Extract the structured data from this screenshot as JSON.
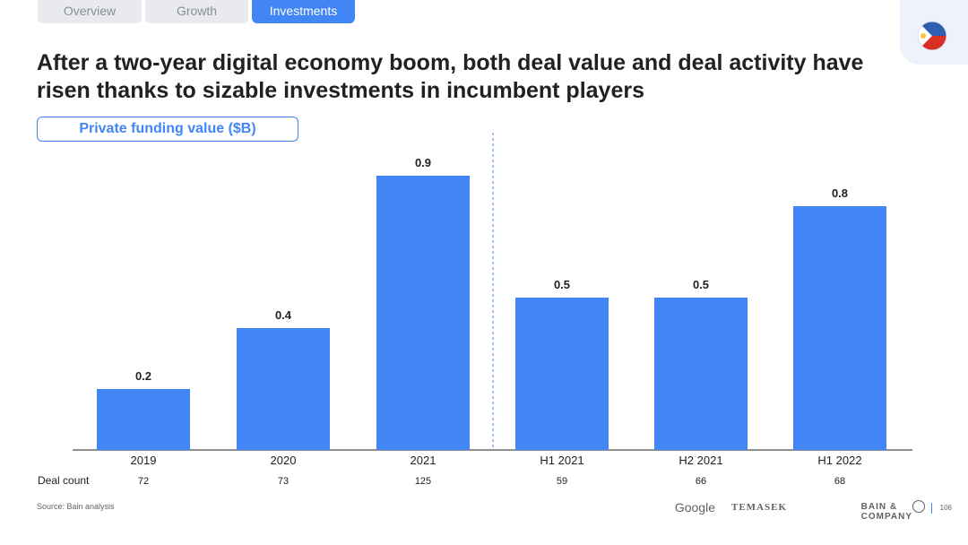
{
  "tabs": [
    {
      "label": "Overview",
      "active": false
    },
    {
      "label": "Growth",
      "active": false
    },
    {
      "label": "Investments",
      "active": true
    }
  ],
  "title": "After a two-year digital economy boom, both deal value and deal activity have risen thanks to sizable investments in incumbent players",
  "chart_data": {
    "type": "bar",
    "title": "Private funding value ($B)",
    "categories": [
      "2019",
      "2020",
      "2021",
      "H1 2021",
      "H2 2021",
      "H1 2022"
    ],
    "values": [
      0.2,
      0.4,
      0.9,
      0.5,
      0.5,
      0.8
    ],
    "data_labels": [
      "0.2",
      "0.4",
      "0.9",
      "0.5",
      "0.5",
      "0.8"
    ],
    "deal_count_label": "Deal count",
    "deal_counts": [
      "72",
      "73",
      "125",
      "59",
      "66",
      "68"
    ],
    "ylim": [
      0,
      1.0
    ],
    "grid": false,
    "bar_color": "#4285f4",
    "divider": "dashed line between 2021 and H1 2021"
  },
  "source": "Source: Bain analysis",
  "footer": {
    "logos": [
      "Google",
      "TEMASEK",
      "BAIN & COMPANY"
    ],
    "page_number": "106"
  },
  "colors": {
    "accent": "#4285f4",
    "tab_inactive": "#e8eaed",
    "text": "#202124"
  },
  "flag_icon": "philippines-flag-icon"
}
